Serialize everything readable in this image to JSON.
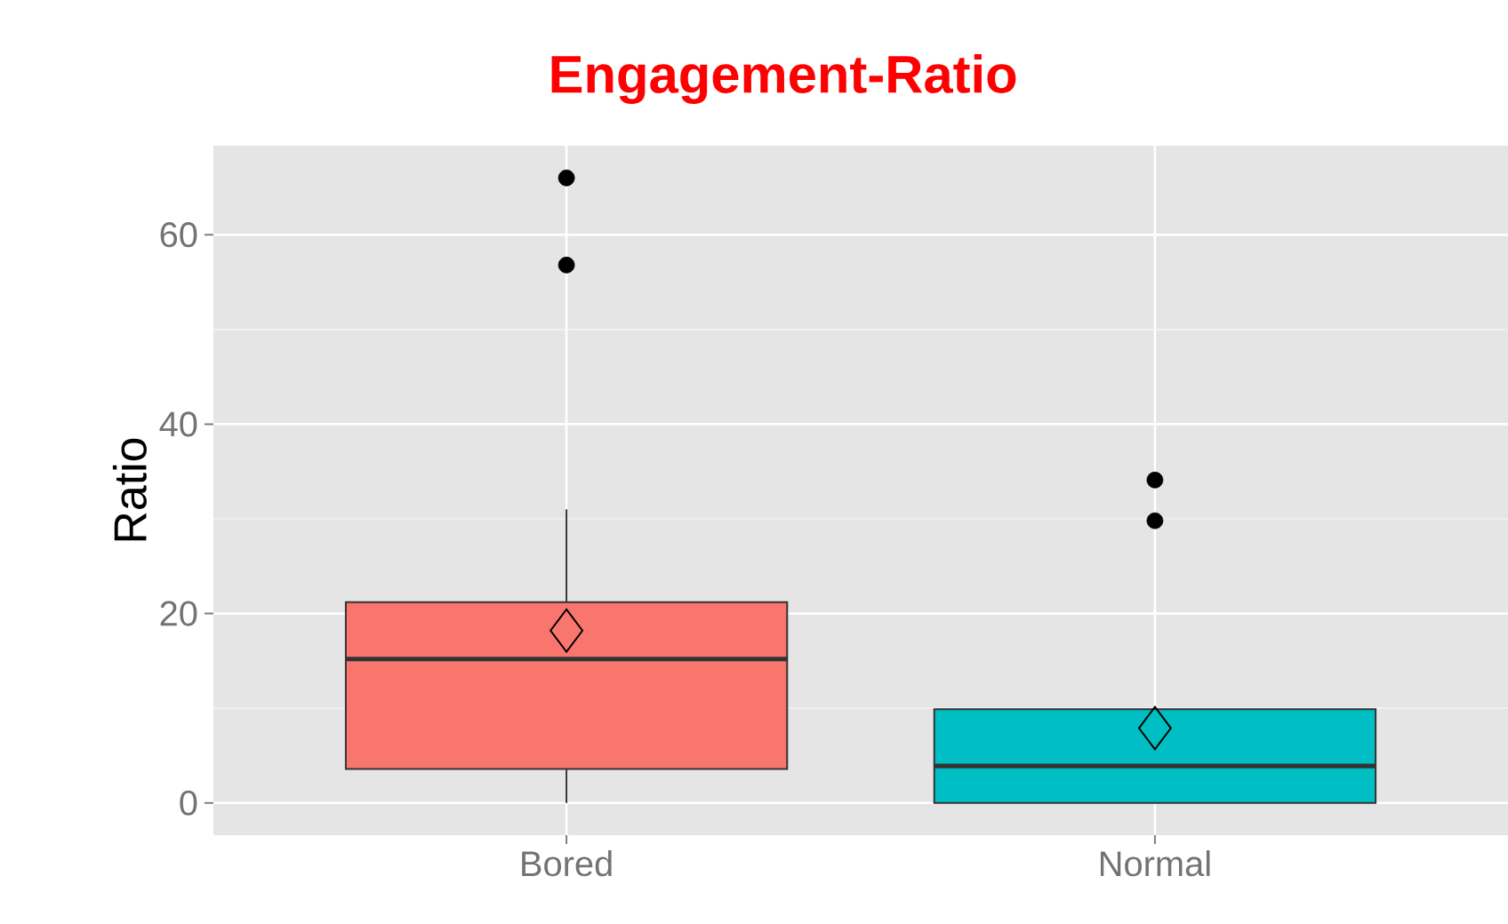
{
  "chart_data": {
    "type": "box",
    "title": "Engagement-Ratio",
    "ylabel": "Ratio",
    "categories": [
      "Bored",
      "Normal"
    ],
    "colors": [
      "#f8766d",
      "#00bfc4"
    ],
    "boxes": [
      {
        "low": 0,
        "q1": 3.6,
        "median": 15.2,
        "q3": 21.2,
        "high": 31,
        "mean": 18.2,
        "outliers": [
          66,
          56.8
        ]
      },
      {
        "low": 0,
        "q1": 0,
        "median": 3.9,
        "q3": 9.9,
        "high": 9.9,
        "mean": 7.9,
        "outliers": [
          34.1,
          29.8
        ]
      }
    ],
    "ylim": [
      -3.4,
      69.4
    ],
    "yticks": [
      0,
      20,
      40,
      60
    ],
    "grid": true
  }
}
